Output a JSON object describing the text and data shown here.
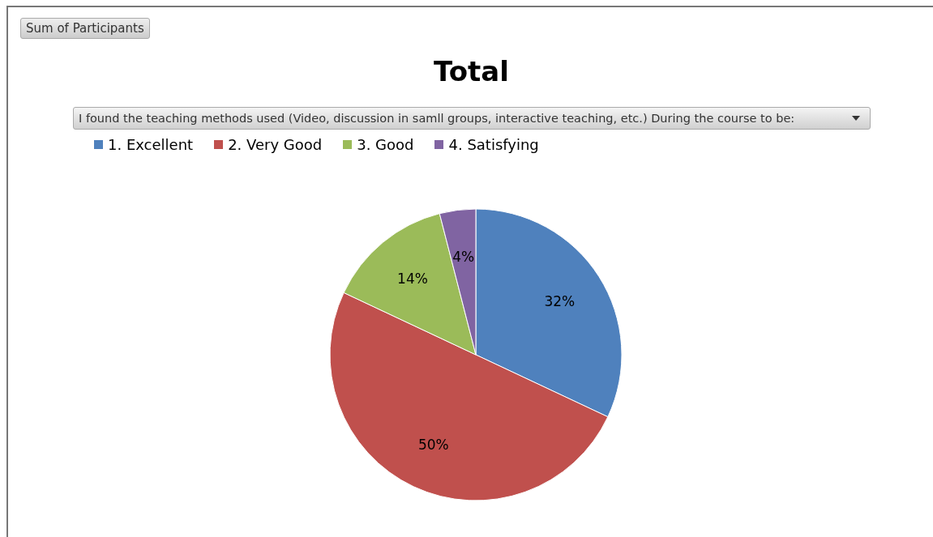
{
  "chart_data": {
    "type": "pie",
    "title": "Total",
    "legend_title": "I found the teaching methods used (Video, discussion in samll groups, interactive teaching, etc.) During the course to be:",
    "annotations": [
      "Sum of Participants"
    ],
    "categories": [
      "1. Excellent",
      "2. Very Good",
      "3. Good",
      "4. Satisfying"
    ],
    "values": [
      32,
      50,
      14,
      4
    ],
    "colors": [
      "#4f81bd",
      "#c0504d",
      "#9bbb59",
      "#8064a2"
    ],
    "value_labels": [
      "32%",
      "50%",
      "14%",
      "4%"
    ],
    "legend": "top"
  }
}
